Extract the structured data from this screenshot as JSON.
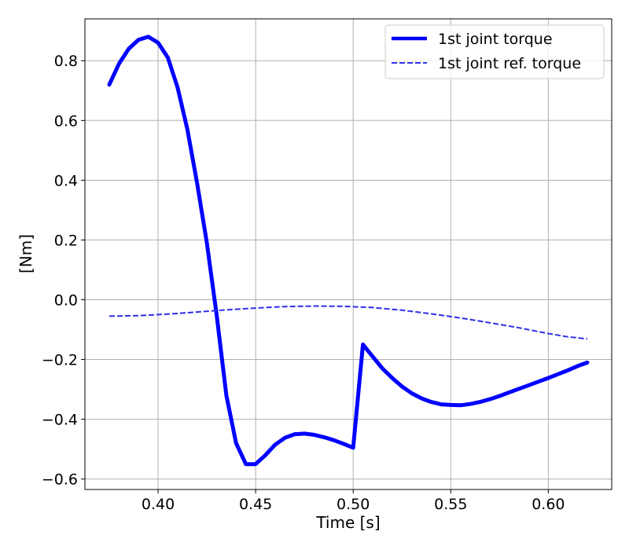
{
  "chart_data": {
    "type": "line",
    "title": "",
    "xlabel": "Time [s]",
    "ylabel": "[Nm]",
    "xlim": [
      0.3625,
      0.6325
    ],
    "ylim": [
      -0.635,
      0.94
    ],
    "x_ticks": [
      0.4,
      0.45,
      0.5,
      0.55,
      0.6
    ],
    "x_tick_labels": [
      "0.40",
      "0.45",
      "0.50",
      "0.55",
      "0.60"
    ],
    "y_ticks": [
      -0.6,
      -0.4,
      -0.2,
      0.0,
      0.2,
      0.4,
      0.6,
      0.8
    ],
    "y_tick_labels": [
      "−0.6",
      "−0.4",
      "−0.2",
      "0.0",
      "0.2",
      "0.4",
      "0.6",
      "0.8"
    ],
    "grid": true,
    "legend_position": "top-right",
    "series": [
      {
        "name": "1st joint torque",
        "color": "#0000ff",
        "style": "solid",
        "x": [
          0.375,
          0.38,
          0.385,
          0.39,
          0.395,
          0.4,
          0.405,
          0.41,
          0.415,
          0.42,
          0.425,
          0.43,
          0.435,
          0.44,
          0.445,
          0.45,
          0.455,
          0.46,
          0.465,
          0.47,
          0.475,
          0.48,
          0.485,
          0.49,
          0.495,
          0.5,
          0.505,
          0.51,
          0.515,
          0.52,
          0.525,
          0.53,
          0.535,
          0.54,
          0.545,
          0.55,
          0.555,
          0.56,
          0.565,
          0.57,
          0.575,
          0.58,
          0.585,
          0.59,
          0.595,
          0.6,
          0.605,
          0.61,
          0.615,
          0.62
        ],
        "y": [
          0.72,
          0.79,
          0.84,
          0.87,
          0.88,
          0.86,
          0.81,
          0.71,
          0.57,
          0.39,
          0.19,
          -0.05,
          -0.32,
          -0.48,
          -0.55,
          -0.55,
          -0.52,
          -0.485,
          -0.462,
          -0.45,
          -0.448,
          -0.452,
          -0.46,
          -0.47,
          -0.482,
          -0.495,
          -0.15,
          -0.19,
          -0.23,
          -0.262,
          -0.29,
          -0.313,
          -0.33,
          -0.342,
          -0.35,
          -0.352,
          -0.353,
          -0.349,
          -0.342,
          -0.333,
          -0.322,
          -0.31,
          -0.298,
          -0.286,
          -0.274,
          -0.262,
          -0.249,
          -0.236,
          -0.222,
          -0.21
        ]
      },
      {
        "name": "1st joint ref. torque",
        "color": "#2f2fe8",
        "style": "dashed",
        "x": [
          0.375,
          0.39,
          0.405,
          0.42,
          0.435,
          0.45,
          0.465,
          0.48,
          0.495,
          0.51,
          0.525,
          0.54,
          0.555,
          0.57,
          0.585,
          0.6,
          0.61,
          0.62
        ],
        "y": [
          -0.055,
          -0.053,
          -0.048,
          -0.041,
          -0.034,
          -0.028,
          -0.023,
          -0.021,
          -0.022,
          -0.026,
          -0.035,
          -0.047,
          -0.061,
          -0.077,
          -0.094,
          -0.113,
          -0.124,
          -0.131
        ]
      }
    ]
  }
}
